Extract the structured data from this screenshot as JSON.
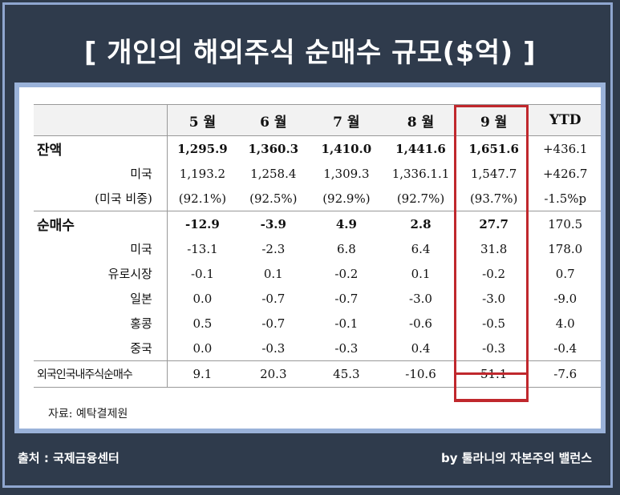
{
  "title": "[ 개인의 해외주식 순매수 규모($억) ]",
  "chart_data": {
    "type": "table",
    "columns": [
      "",
      "5 월",
      "6 월",
      "7 월",
      "8 월",
      "9 월",
      "YTD"
    ],
    "rows": [
      {
        "label": "잔액",
        "values": [
          "1,295.9",
          "1,360.3",
          "1,410.0",
          "1,441.6",
          "1,651.6",
          "+436.1"
        ]
      },
      {
        "label": "미국",
        "values": [
          "1,193.2",
          "1,258.4",
          "1,309.3",
          "1,336.1.1",
          "1,547.7",
          "+426.7"
        ]
      },
      {
        "label": "(미국 비중)",
        "values": [
          "(92.1%)",
          "(92.5%)",
          "(92.9%)",
          "(92.7%)",
          "(93.7%)",
          "-1.5%p"
        ]
      },
      {
        "label": "순매수",
        "values": [
          "-12.9",
          "-3.9",
          "4.9",
          "2.8",
          "27.7",
          "170.5"
        ]
      },
      {
        "label": "미국",
        "values": [
          "-13.1",
          "-2.3",
          "6.8",
          "6.4",
          "31.8",
          "178.0"
        ]
      },
      {
        "label": "유로시장",
        "values": [
          "-0.1",
          "0.1",
          "-0.2",
          "0.1",
          "-0.2",
          "0.7"
        ]
      },
      {
        "label": "일본",
        "values": [
          "0.0",
          "-0.7",
          "-0.7",
          "-3.0",
          "-3.0",
          "-9.0"
        ]
      },
      {
        "label": "홍콩",
        "values": [
          "0.5",
          "-0.7",
          "-0.1",
          "-0.6",
          "-0.5",
          "4.0"
        ]
      },
      {
        "label": "중국",
        "values": [
          "0.0",
          "-0.3",
          "-0.3",
          "0.4",
          "-0.3",
          "-0.4"
        ]
      },
      {
        "label": "외국인국내주식순매수",
        "values": [
          "9.1",
          "20.3",
          "45.3",
          "-10.6",
          "51.1",
          "-7.6"
        ]
      }
    ],
    "highlight_column": "9 월",
    "highlight_color": "#c0282d"
  },
  "source_note": "자료: 예탁결제원",
  "footer": {
    "source": "출처 : 국제금융센터",
    "credit": "by 툴라니의 자본주의 밸런스"
  },
  "colors": {
    "background": "#2f3b4c",
    "frame": "#8fa6cf",
    "panel_border": "#9ab2d9",
    "header_fill": "#f2f2f2"
  }
}
